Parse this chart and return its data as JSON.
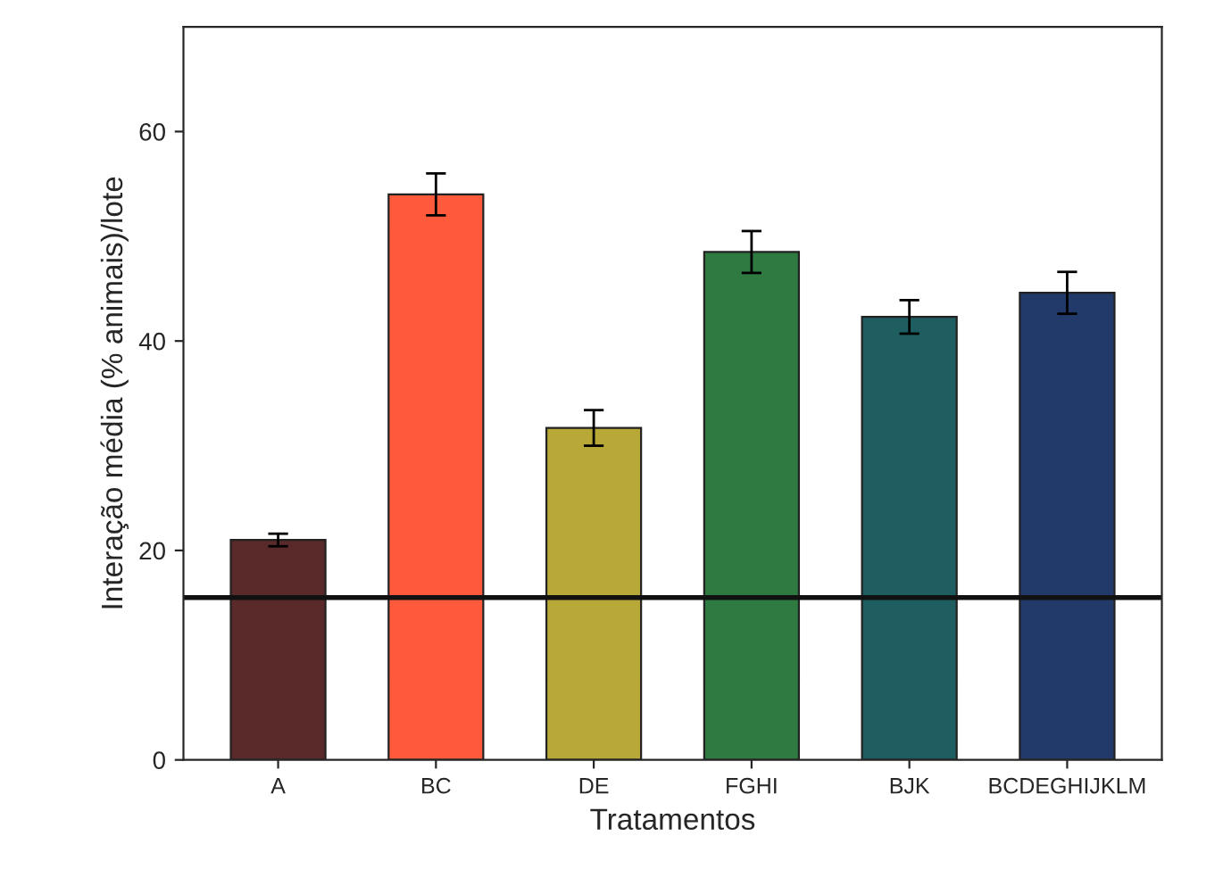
{
  "chart_data": {
    "type": "bar",
    "xlabel": "Tratamentos",
    "ylabel": "Interação média (% animais)/lote",
    "categories": [
      "A",
      "BC",
      "DE",
      "FGHI",
      "BJK",
      "BCDEGHIJKLM"
    ],
    "values": [
      21,
      54,
      31.7,
      48.5,
      42.3,
      44.6
    ],
    "errors": [
      0.6,
      2,
      1.7,
      2,
      1.6,
      2
    ],
    "colors": [
      "#5a2a2a",
      "#ff5a3c",
      "#b8a838",
      "#2e7a40",
      "#1f5e60",
      "#223a6a"
    ],
    "ylim": [
      0,
      70
    ],
    "yticks": [
      0,
      20,
      40,
      60
    ],
    "grid": false,
    "ref_lines": [
      {
        "axis": "y",
        "value": 15.5,
        "color": "#111111"
      }
    ]
  }
}
